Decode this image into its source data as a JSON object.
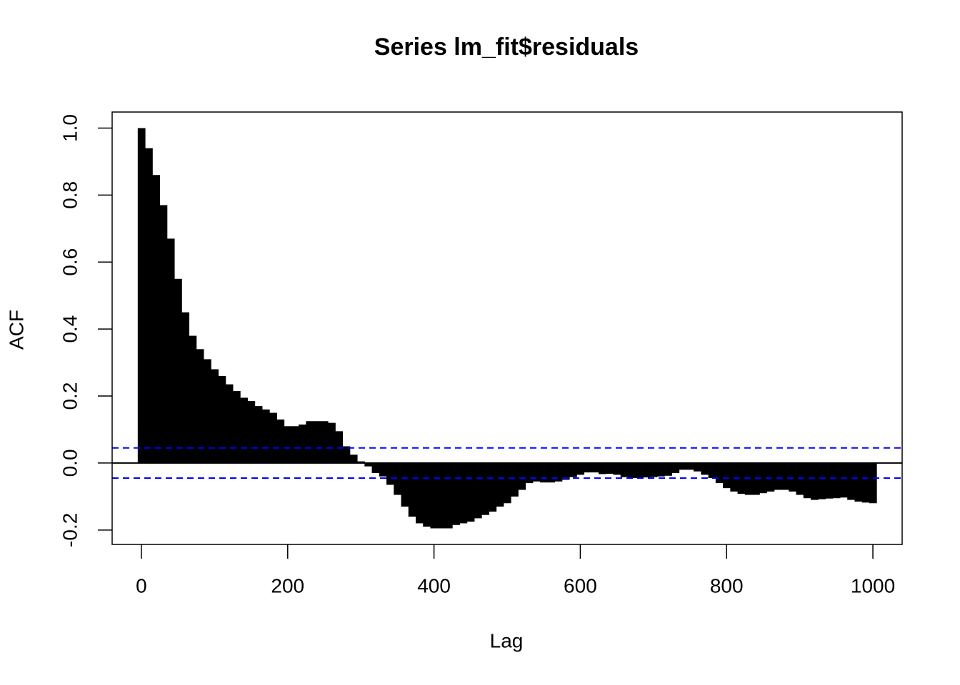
{
  "chart_data": {
    "type": "acf",
    "title": "Series  lm_fit$residuals",
    "xlabel": "Lag",
    "ylabel": "ACF",
    "color": "#000000",
    "x": [
      0,
      10,
      20,
      30,
      40,
      50,
      60,
      70,
      80,
      90,
      100,
      110,
      120,
      130,
      140,
      150,
      160,
      170,
      180,
      190,
      200,
      210,
      220,
      230,
      240,
      250,
      260,
      270,
      280,
      290,
      300,
      310,
      320,
      330,
      340,
      350,
      360,
      370,
      380,
      390,
      400,
      410,
      420,
      430,
      440,
      450,
      460,
      470,
      480,
      490,
      500,
      510,
      520,
      530,
      540,
      550,
      560,
      570,
      580,
      590,
      600,
      610,
      620,
      630,
      640,
      650,
      660,
      670,
      680,
      690,
      700,
      710,
      720,
      730,
      740,
      750,
      760,
      770,
      780,
      790,
      800,
      810,
      820,
      830,
      840,
      850,
      860,
      870,
      880,
      890,
      900,
      910,
      920,
      930,
      940,
      950,
      960,
      970,
      980,
      990,
      1000
    ],
    "values": [
      1.0,
      0.94,
      0.86,
      0.77,
      0.67,
      0.55,
      0.45,
      0.38,
      0.34,
      0.31,
      0.28,
      0.26,
      0.235,
      0.215,
      0.195,
      0.185,
      0.17,
      0.16,
      0.15,
      0.13,
      0.11,
      0.11,
      0.115,
      0.125,
      0.125,
      0.125,
      0.12,
      0.095,
      0.05,
      0.025,
      0.005,
      -0.01,
      -0.03,
      -0.04,
      -0.065,
      -0.095,
      -0.13,
      -0.16,
      -0.18,
      -0.19,
      -0.195,
      -0.195,
      -0.195,
      -0.185,
      -0.18,
      -0.175,
      -0.165,
      -0.155,
      -0.145,
      -0.13,
      -0.12,
      -0.1,
      -0.08,
      -0.06,
      -0.055,
      -0.058,
      -0.058,
      -0.055,
      -0.05,
      -0.042,
      -0.035,
      -0.028,
      -0.028,
      -0.033,
      -0.032,
      -0.035,
      -0.042,
      -0.045,
      -0.045,
      -0.043,
      -0.042,
      -0.04,
      -0.038,
      -0.03,
      -0.02,
      -0.02,
      -0.025,
      -0.035,
      -0.045,
      -0.06,
      -0.075,
      -0.085,
      -0.092,
      -0.095,
      -0.095,
      -0.09,
      -0.085,
      -0.08,
      -0.08,
      -0.085,
      -0.095,
      -0.105,
      -0.11,
      -0.108,
      -0.106,
      -0.105,
      -0.103,
      -0.11,
      -0.115,
      -0.118,
      -0.12
    ],
    "confidence_bounds": [
      0.045,
      -0.045
    ],
    "confidence_color": "#0000ff",
    "xlim": [
      -40,
      1040
    ],
    "ylim": [
      -0.243,
      1.048
    ],
    "xticks": [
      0,
      200,
      400,
      600,
      800,
      1000
    ],
    "yticks": [
      -0.2,
      {
        "value": 0,
        "label": "0.0"
      },
      0.2,
      0.4,
      0.6,
      0.8,
      {
        "value": 1,
        "label": "1.0"
      }
    ]
  }
}
